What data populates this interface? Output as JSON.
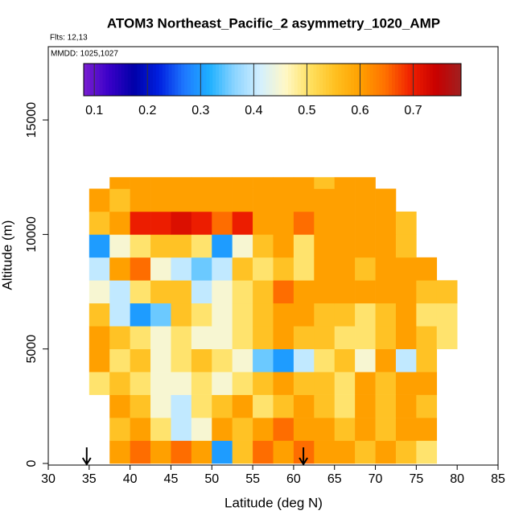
{
  "chart_data": {
    "type": "heatmap",
    "title": "ATOM3 Northeast_Pacific_2 asymmetry_1020_AMP",
    "subtitle": "Flts: 12,13",
    "annotation": "MMDD: 1025,1027",
    "xlabel": "Latitude (deg N)",
    "ylabel": "Altitude (m)",
    "xlim": [
      30,
      85
    ],
    "xticks": [
      30,
      35,
      40,
      45,
      50,
      55,
      60,
      65,
      70,
      75,
      80,
      85
    ],
    "ylim": [
      0,
      18200
    ],
    "yticks": [
      0,
      5000,
      10000,
      15000
    ],
    "latitude_bins": [
      35,
      37.5,
      40,
      42.5,
      45,
      47.5,
      50,
      52.5,
      55,
      57.5,
      60,
      62.5,
      65,
      67.5,
      70,
      72.5,
      75,
      77.5,
      80
    ],
    "altitude_bins": [
      0,
      1000,
      2000,
      3000,
      4000,
      5000,
      6000,
      7000,
      8000,
      9000,
      10000,
      11000,
      12000,
      12500
    ],
    "z": [
      [
        null,
        0.6,
        0.65,
        0.6,
        0.65,
        0.6,
        0.3,
        0.55,
        0.65,
        0.6,
        0.65,
        0.6,
        0.6,
        0.55,
        0.6,
        0.55,
        0.5,
        null
      ],
      [
        null,
        0.55,
        0.6,
        0.5,
        0.4,
        0.45,
        0.6,
        0.55,
        0.6,
        0.65,
        0.6,
        0.6,
        0.55,
        0.6,
        0.55,
        0.6,
        0.6,
        null
      ],
      [
        null,
        0.6,
        0.55,
        0.45,
        0.4,
        0.5,
        0.55,
        0.6,
        0.5,
        0.55,
        0.6,
        0.55,
        0.5,
        0.6,
        0.55,
        0.6,
        0.55,
        null
      ],
      [
        0.5,
        0.55,
        0.5,
        0.45,
        0.45,
        0.5,
        0.45,
        0.5,
        0.55,
        0.6,
        0.55,
        0.55,
        0.5,
        0.6,
        0.55,
        0.6,
        0.6,
        null
      ],
      [
        0.6,
        0.5,
        0.55,
        0.45,
        0.5,
        0.55,
        0.5,
        0.45,
        0.35,
        0.3,
        0.4,
        0.5,
        0.55,
        0.45,
        0.6,
        0.4,
        0.55,
        null
      ],
      [
        0.6,
        0.55,
        0.5,
        0.45,
        0.5,
        0.45,
        0.45,
        0.5,
        0.55,
        0.6,
        0.55,
        0.55,
        0.5,
        0.5,
        0.55,
        0.6,
        0.55,
        0.5
      ],
      [
        0.55,
        0.4,
        0.3,
        0.35,
        0.55,
        0.5,
        0.45,
        0.5,
        0.55,
        0.6,
        0.6,
        0.55,
        0.55,
        0.5,
        0.55,
        0.6,
        0.5,
        0.5
      ],
      [
        0.45,
        0.4,
        0.5,
        0.55,
        0.55,
        0.4,
        0.45,
        0.5,
        0.55,
        0.65,
        0.6,
        0.6,
        0.6,
        0.6,
        0.6,
        0.6,
        0.55,
        0.55
      ],
      [
        0.4,
        0.6,
        0.65,
        0.45,
        0.4,
        0.35,
        0.4,
        0.55,
        0.5,
        0.55,
        0.5,
        0.6,
        0.6,
        0.55,
        0.6,
        0.6,
        0.6,
        null
      ],
      [
        0.3,
        0.45,
        0.5,
        0.55,
        0.55,
        0.5,
        0.3,
        0.45,
        0.55,
        0.6,
        0.5,
        0.6,
        0.6,
        0.6,
        0.6,
        0.55,
        null,
        null
      ],
      [
        0.55,
        0.6,
        0.7,
        0.7,
        0.72,
        0.7,
        0.65,
        0.7,
        0.6,
        0.6,
        0.65,
        0.6,
        0.6,
        0.6,
        0.6,
        0.55,
        null,
        null
      ],
      [
        0.6,
        0.55,
        0.6,
        0.6,
        0.6,
        0.6,
        0.6,
        0.6,
        0.6,
        0.6,
        0.6,
        0.6,
        0.6,
        0.6,
        0.6,
        null,
        null,
        null
      ],
      [
        null,
        0.6,
        0.6,
        0.6,
        0.6,
        0.6,
        0.6,
        0.6,
        0.6,
        0.6,
        0.6,
        0.55,
        0.6,
        0.6,
        null,
        null,
        null,
        null
      ]
    ],
    "clim": [
      0.08,
      0.79
    ],
    "cticks": [
      0.1,
      0.2,
      0.3,
      0.4,
      0.5,
      0.6,
      0.7
    ],
    "colorscale": [
      "#7a1fd0",
      "#3a00c8",
      "#0000a8",
      "#0020e0",
      "#1e78ff",
      "#1eb0ff",
      "#8cd4ff",
      "#d2efff",
      "#fff8c8",
      "#ffe060",
      "#ffc020",
      "#ffa000",
      "#ff7000",
      "#f02000",
      "#c80000",
      "#a02020"
    ],
    "markers_x": [
      34.7,
      61.2
    ]
  }
}
